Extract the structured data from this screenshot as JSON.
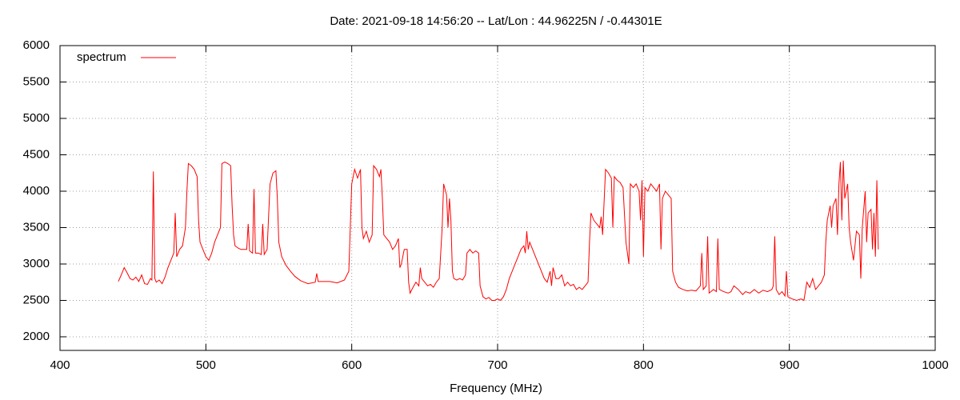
{
  "chart_data": {
    "type": "line",
    "title": "Date: 2021-09-18 14:56:20  --  Lat/Lon : 44.96225N / -0.44301E",
    "x_label": "Frequency (MHz)",
    "xlim": [
      400,
      1000
    ],
    "xticks": [
      400,
      500,
      600,
      700,
      800,
      900,
      1000
    ],
    "ylim": [
      1813,
      6000
    ],
    "yticks": [
      2000,
      2500,
      3000,
      3500,
      4000,
      4500,
      5000,
      5500,
      6000
    ],
    "grid": true,
    "legend": "top-left",
    "x": [
      440,
      442,
      444,
      446,
      448,
      450,
      452,
      454,
      456,
      458,
      460,
      462,
      463,
      464,
      465,
      466,
      468,
      470,
      472,
      474,
      476,
      478,
      479,
      480,
      482,
      484,
      486,
      487,
      488,
      490,
      492,
      494,
      495,
      496,
      498,
      500,
      502,
      504,
      506,
      508,
      510,
      511,
      513,
      515,
      517,
      518,
      519,
      520,
      522,
      524,
      526,
      528,
      529,
      530,
      532,
      533,
      534,
      536,
      538,
      539,
      540,
      542,
      544,
      546,
      548,
      549,
      550,
      552,
      555,
      558,
      561,
      565,
      570,
      575,
      576,
      577,
      580,
      585,
      590,
      595,
      598,
      599,
      600,
      602,
      604,
      606,
      607,
      608,
      610,
      612,
      614,
      615,
      617,
      619,
      620,
      621,
      622,
      624,
      626,
      628,
      630,
      632,
      633,
      634,
      636,
      638,
      639,
      640,
      642,
      644,
      646,
      647,
      648,
      650,
      652,
      654,
      656,
      658,
      660,
      662,
      663,
      665,
      666,
      667,
      668,
      669,
      670,
      672,
      674,
      676,
      678,
      679,
      681,
      683,
      685,
      687,
      688,
      690,
      692,
      694,
      696,
      698,
      700,
      702,
      704,
      706,
      708,
      710,
      712,
      714,
      716,
      718,
      719,
      720,
      721,
      722,
      724,
      726,
      728,
      730,
      732,
      734,
      736,
      737,
      738,
      740,
      742,
      744,
      746,
      748,
      750,
      752,
      754,
      756,
      758,
      760,
      762,
      763,
      764,
      766,
      768,
      770,
      771,
      772,
      774,
      776,
      778,
      779,
      780,
      782,
      784,
      786,
      788,
      790,
      791,
      793,
      795,
      797,
      798,
      799,
      800,
      801,
      803,
      805,
      807,
      809,
      811,
      812,
      813,
      815,
      817,
      819,
      820,
      822,
      824,
      827,
      830,
      833,
      836,
      839,
      840,
      841,
      843,
      844,
      845,
      848,
      850,
      851,
      852,
      855,
      858,
      860,
      862,
      865,
      868,
      870,
      873,
      876,
      879,
      882,
      885,
      888,
      889,
      890,
      891,
      893,
      895,
      897,
      898,
      899,
      902,
      905,
      908,
      910,
      912,
      914,
      916,
      918,
      920,
      922,
      924,
      925,
      926,
      928,
      929,
      930,
      932,
      933,
      934,
      935,
      936,
      937,
      938,
      940,
      941,
      942,
      944,
      946,
      948,
      949,
      950,
      952,
      953,
      954,
      956,
      957,
      958,
      959,
      960,
      961
    ],
    "series": [
      {
        "name": "spectrum",
        "color": "#ff0000",
        "values": [
          2760,
          2850,
          2950,
          2880,
          2800,
          2780,
          2820,
          2760,
          2850,
          2730,
          2720,
          2800,
          2780,
          4270,
          2800,
          2750,
          2780,
          2730,
          2820,
          2950,
          3050,
          3150,
          3700,
          3100,
          3200,
          3250,
          3500,
          4000,
          4380,
          4350,
          4300,
          4200,
          3600,
          3300,
          3200,
          3100,
          3050,
          3150,
          3300,
          3400,
          3500,
          4380,
          4400,
          4380,
          4350,
          3800,
          3400,
          3250,
          3220,
          3200,
          3200,
          3200,
          3550,
          3180,
          3150,
          4030,
          3150,
          3150,
          3130,
          3550,
          3130,
          3200,
          4100,
          4250,
          4280,
          3900,
          3300,
          3100,
          2980,
          2900,
          2830,
          2770,
          2730,
          2750,
          2870,
          2760,
          2760,
          2760,
          2740,
          2780,
          2900,
          3500,
          4100,
          4300,
          4180,
          4300,
          3500,
          3350,
          3450,
          3300,
          3400,
          4350,
          4300,
          4200,
          4300,
          3900,
          3400,
          3350,
          3300,
          3200,
          3250,
          3350,
          2950,
          3000,
          3200,
          3200,
          2750,
          2600,
          2680,
          2750,
          2700,
          2950,
          2800,
          2750,
          2700,
          2720,
          2680,
          2750,
          2800,
          3500,
          4100,
          3950,
          3500,
          3900,
          3600,
          2900,
          2800,
          2780,
          2800,
          2780,
          2850,
          3150,
          3200,
          3150,
          3180,
          3150,
          2700,
          2550,
          2520,
          2540,
          2500,
          2500,
          2520,
          2500,
          2550,
          2650,
          2800,
          2900,
          3000,
          3100,
          3200,
          3250,
          3150,
          3450,
          3200,
          3300,
          3200,
          3100,
          3000,
          2900,
          2800,
          2750,
          2900,
          2700,
          2950,
          2800,
          2800,
          2850,
          2700,
          2750,
          2700,
          2720,
          2650,
          2680,
          2650,
          2700,
          2750,
          3300,
          3700,
          3600,
          3550,
          3500,
          3650,
          3400,
          4300,
          4250,
          4180,
          3500,
          4200,
          4150,
          4120,
          4050,
          3300,
          3000,
          4100,
          4050,
          4100,
          4000,
          3600,
          4150,
          3100,
          4050,
          4000,
          4100,
          4050,
          4000,
          4100,
          3200,
          3900,
          4000,
          3950,
          3900,
          2900,
          2750,
          2680,
          2650,
          2630,
          2640,
          2630,
          2700,
          3150,
          2650,
          2700,
          3380,
          2600,
          2650,
          2620,
          3350,
          2650,
          2620,
          2600,
          2620,
          2700,
          2650,
          2580,
          2620,
          2600,
          2650,
          2600,
          2640,
          2620,
          2650,
          2700,
          3380,
          2650,
          2580,
          2620,
          2560,
          2900,
          2550,
          2520,
          2500,
          2520,
          2500,
          2750,
          2680,
          2800,
          2650,
          2700,
          2750,
          2850,
          3300,
          3600,
          3800,
          3500,
          3800,
          3900,
          3400,
          4100,
          4400,
          3600,
          4420,
          3900,
          4100,
          3500,
          3300,
          3050,
          3450,
          3400,
          2800,
          3500,
          4000,
          3300,
          3700,
          3750,
          3200,
          3700,
          3100,
          4150,
          3200
        ]
      }
    ]
  }
}
